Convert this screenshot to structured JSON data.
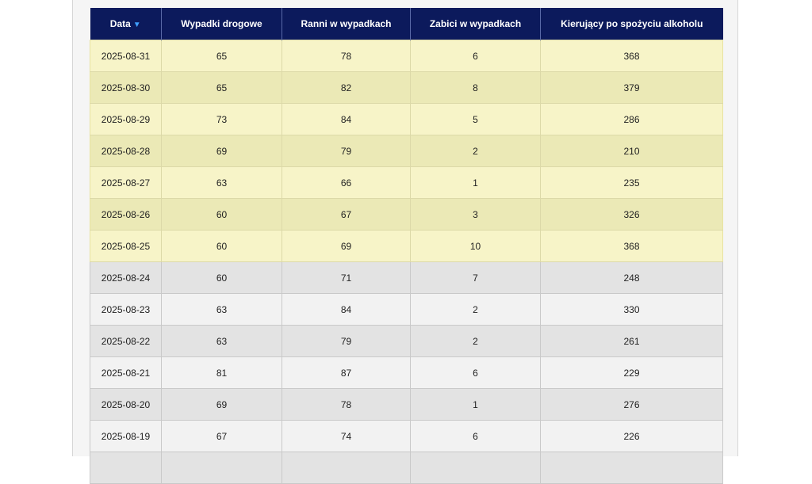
{
  "table": {
    "headers": {
      "date": "Data",
      "accidents": "Wypadki drogowe",
      "injured": "Ranni w wypadkach",
      "killed": "Zabici w wypadkach",
      "drunk_drivers": "Kierujący po spożyciu alkoholu"
    },
    "sort_icon": "sort-down-icon",
    "highlight_color": "#f7f4c8",
    "header_color": "#0c1a5c",
    "rows": [
      [
        "2025-08-31",
        "65",
        "78",
        "6",
        "368"
      ],
      [
        "2025-08-30",
        "65",
        "82",
        "8",
        "379"
      ],
      [
        "2025-08-29",
        "73",
        "84",
        "5",
        "286"
      ],
      [
        "2025-08-28",
        "69",
        "79",
        "2",
        "210"
      ],
      [
        "2025-08-27",
        "63",
        "66",
        "1",
        "235"
      ],
      [
        "2025-08-26",
        "60",
        "67",
        "3",
        "326"
      ],
      [
        "2025-08-25",
        "60",
        "69",
        "10",
        "368"
      ],
      [
        "2025-08-24",
        "60",
        "71",
        "7",
        "248"
      ],
      [
        "2025-08-23",
        "63",
        "84",
        "2",
        "330"
      ],
      [
        "2025-08-22",
        "63",
        "79",
        "2",
        "261"
      ],
      [
        "2025-08-21",
        "81",
        "87",
        "6",
        "229"
      ],
      [
        "2025-08-20",
        "69",
        "78",
        "1",
        "276"
      ],
      [
        "2025-08-19",
        "67",
        "74",
        "6",
        "226"
      ],
      [
        "",
        "",
        "",
        "",
        ""
      ]
    ]
  }
}
